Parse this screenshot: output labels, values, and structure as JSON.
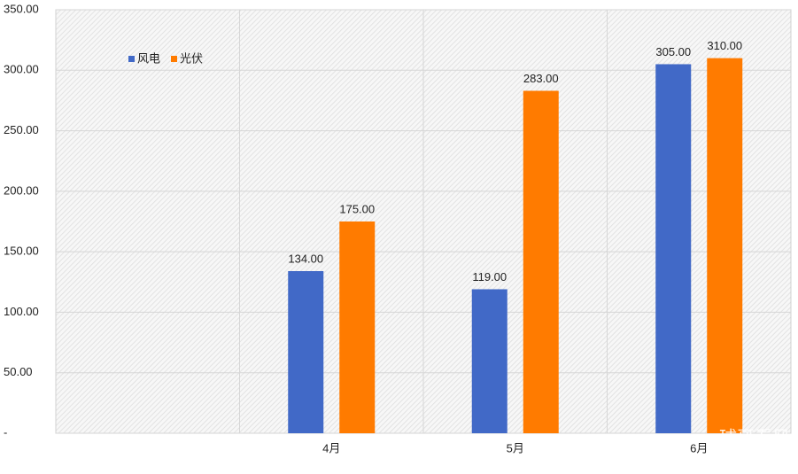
{
  "chart_data": {
    "type": "bar",
    "categories": [
      null,
      "4月",
      "5月",
      "6月"
    ],
    "series": [
      {
        "name": "风电",
        "color": "#4169c7",
        "values": [
          null,
          134,
          119,
          305
        ],
        "value_labels": [
          null,
          "134.00",
          "119.00",
          "305.00"
        ]
      },
      {
        "name": "光伏",
        "color": "#ff7b00",
        "values": [
          null,
          175,
          283,
          310
        ],
        "value_labels": [
          null,
          "175.00",
          "283.00",
          "310.00"
        ]
      }
    ],
    "ylim": [
      0,
      350
    ],
    "yticks": [
      {
        "value": 0,
        "label": "-"
      },
      {
        "value": 50,
        "label": "50.00"
      },
      {
        "value": 100,
        "label": "100.00"
      },
      {
        "value": 150,
        "label": "150.00"
      },
      {
        "value": 200,
        "label": "200.00"
      },
      {
        "value": 250,
        "label": "250.00"
      },
      {
        "value": 300,
        "label": "300.00"
      },
      {
        "value": 350,
        "label": "350.00"
      }
    ],
    "grid": true,
    "legend": "top-left",
    "watermark": "球哥看风"
  }
}
